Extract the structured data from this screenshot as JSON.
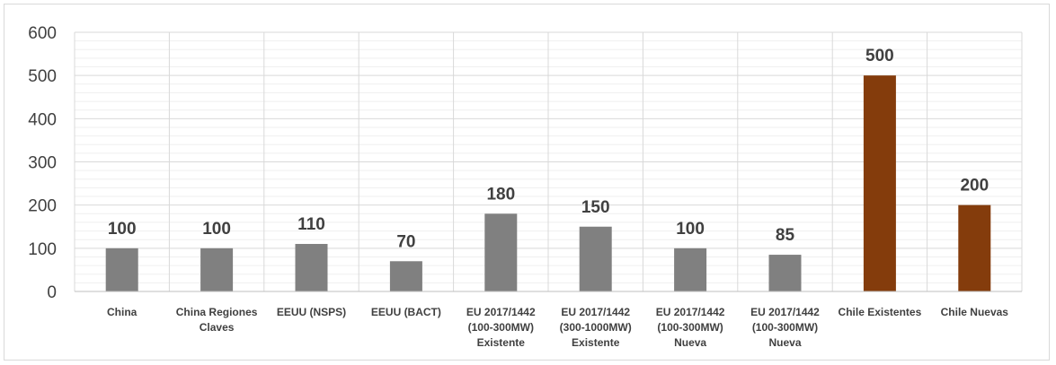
{
  "chart_data": {
    "type": "bar",
    "title": "",
    "xlabel": "",
    "ylabel": "",
    "ylim": [
      0,
      600
    ],
    "yticks": [
      "0",
      "100",
      "200",
      "300",
      "400",
      "500",
      "600"
    ],
    "grid": true,
    "categories": [
      [
        "China"
      ],
      [
        "China Regiones",
        "Claves"
      ],
      [
        "EEUU (NSPS)"
      ],
      [
        "EEUU (BACT)"
      ],
      [
        "EU 2017/1442",
        "(100-300MW)",
        "Existente"
      ],
      [
        "EU 2017/1442",
        "(300-1000MW)",
        "Existente"
      ],
      [
        "EU 2017/1442",
        "(100-300MW)",
        "Nueva"
      ],
      [
        "EU 2017/1442",
        "(100-300MW)",
        "Nueva"
      ],
      [
        "Chile Existentes"
      ],
      [
        "Chile Nuevas"
      ]
    ],
    "values": [
      100,
      100,
      110,
      70,
      180,
      150,
      100,
      85,
      500,
      200
    ],
    "data_labels": [
      "100",
      "100",
      "110",
      "70",
      "180",
      "150",
      "100",
      "85",
      "500",
      "200"
    ],
    "colors": [
      "#808080",
      "#808080",
      "#808080",
      "#808080",
      "#808080",
      "#808080",
      "#808080",
      "#808080",
      "#843c0c",
      "#843c0c"
    ],
    "gridline_color": "#d9d9d9",
    "minor_gridline_color": "#efefef"
  }
}
